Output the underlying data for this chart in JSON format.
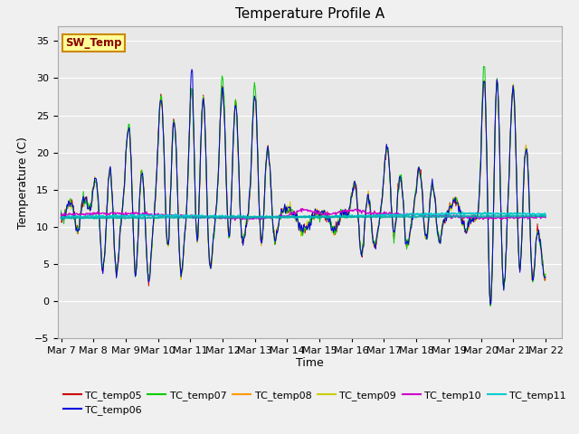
{
  "title": "Temperature Profile A",
  "ylabel": "Temperature (C)",
  "xlabel": "Time",
  "ylim": [
    -5,
    37
  ],
  "yticks": [
    -5,
    0,
    5,
    10,
    15,
    20,
    25,
    30,
    35
  ],
  "xtick_labels": [
    "Mar 7",
    "Mar 8",
    "Mar 9",
    "Mar 10",
    "Mar 11",
    "Mar 12",
    "Mar 13",
    "Mar 14",
    "Mar 15",
    "Mar 16",
    "Mar 17",
    "Mar 18",
    "Mar 19",
    "Mar 20",
    "Mar 21",
    "Mar 22"
  ],
  "series_colors": {
    "TC_temp05": "#cc0000",
    "TC_temp06": "#0000dd",
    "TC_temp07": "#00cc00",
    "TC_temp08": "#ff9900",
    "TC_temp09": "#cccc00",
    "TC_temp10": "#cc00cc",
    "TC_temp11": "#00cccc"
  },
  "sw_temp_box_facecolor": "#ffff99",
  "sw_temp_text_color": "#880000",
  "sw_temp_border_color": "#cc8800",
  "plot_bg_color": "#e8e8e8",
  "fig_bg_color": "#f0f0f0",
  "grid_color": "#ffffff",
  "base_temp": 11.2,
  "title_fontsize": 11,
  "label_fontsize": 9,
  "tick_fontsize": 8,
  "legend_fontsize": 8
}
